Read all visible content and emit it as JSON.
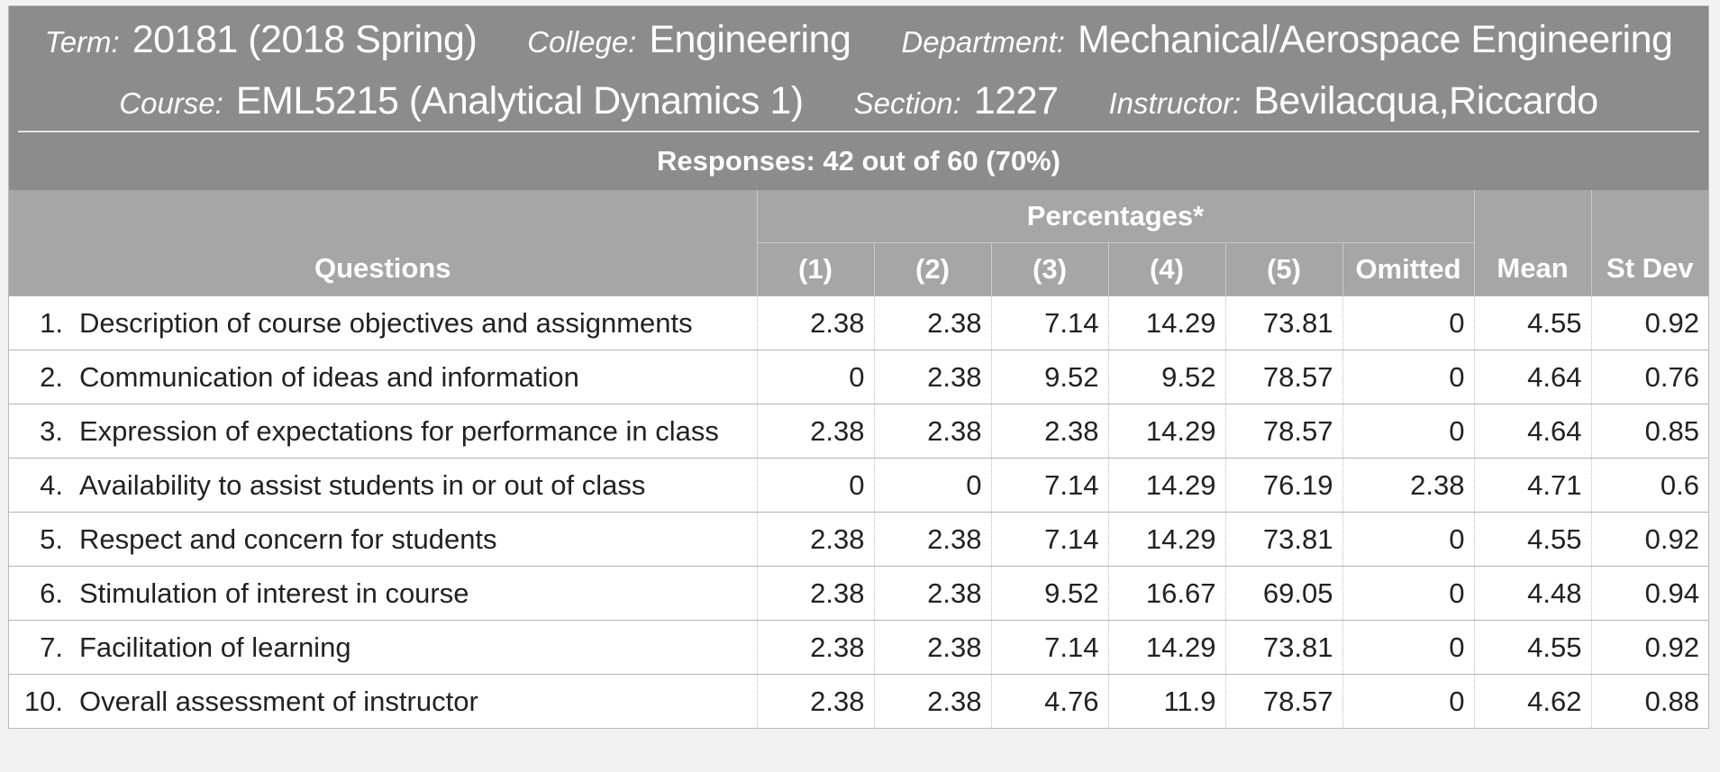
{
  "header": {
    "term_label": "Term:",
    "term_value": "20181 (2018 Spring)",
    "college_label": "College:",
    "college_value": "Engineering",
    "department_label": "Department:",
    "department_value": "Mechanical/Aerospace Engineering",
    "course_label": "Course:",
    "course_value": "EML5215 (Analytical Dynamics 1)",
    "section_label": "Section:",
    "section_value": "1227",
    "instructor_label": "Instructor:",
    "instructor_value": "Bevilacqua,Riccardo",
    "responses": "Responses: 42 out of 60 (70%)"
  },
  "table": {
    "questions_header": "Questions",
    "percentages_header": "Percentages*",
    "columns": [
      "(1)",
      "(2)",
      "(3)",
      "(4)",
      "(5)",
      "Omitted"
    ],
    "mean_header": "Mean",
    "stdev_header": "St Dev",
    "rows": [
      {
        "num": "1.",
        "text": "Description of course objectives and assignments",
        "p1": "2.38",
        "p2": "2.38",
        "p3": "7.14",
        "p4": "14.29",
        "p5": "73.81",
        "omitted": "0",
        "mean": "4.55",
        "stdev": "0.92"
      },
      {
        "num": "2.",
        "text": "Communication of ideas and information",
        "p1": "0",
        "p2": "2.38",
        "p3": "9.52",
        "p4": "9.52",
        "p5": "78.57",
        "omitted": "0",
        "mean": "4.64",
        "stdev": "0.76"
      },
      {
        "num": "3.",
        "text": "Expression of expectations for performance in class",
        "p1": "2.38",
        "p2": "2.38",
        "p3": "2.38",
        "p4": "14.29",
        "p5": "78.57",
        "omitted": "0",
        "mean": "4.64",
        "stdev": "0.85"
      },
      {
        "num": "4.",
        "text": "Availability to assist students in or out of class",
        "p1": "0",
        "p2": "0",
        "p3": "7.14",
        "p4": "14.29",
        "p5": "76.19",
        "omitted": "2.38",
        "mean": "4.71",
        "stdev": "0.6"
      },
      {
        "num": "5.",
        "text": "Respect and concern for students",
        "p1": "2.38",
        "p2": "2.38",
        "p3": "7.14",
        "p4": "14.29",
        "p5": "73.81",
        "omitted": "0",
        "mean": "4.55",
        "stdev": "0.92"
      },
      {
        "num": "6.",
        "text": "Stimulation of interest in course",
        "p1": "2.38",
        "p2": "2.38",
        "p3": "9.52",
        "p4": "16.67",
        "p5": "69.05",
        "omitted": "0",
        "mean": "4.48",
        "stdev": "0.94"
      },
      {
        "num": "7.",
        "text": "Facilitation of learning",
        "p1": "2.38",
        "p2": "2.38",
        "p3": "7.14",
        "p4": "14.29",
        "p5": "73.81",
        "omitted": "0",
        "mean": "4.55",
        "stdev": "0.92"
      },
      {
        "num": "10.",
        "text": "Overall assessment of instructor",
        "p1": "2.38",
        "p2": "2.38",
        "p3": "4.76",
        "p4": "11.9",
        "p5": "78.57",
        "omitted": "0",
        "mean": "4.62",
        "stdev": "0.88"
      }
    ]
  },
  "colors": {
    "header_bg": "#8c8c8c",
    "table_header_bg": "#a6a6a6",
    "text": "#222222"
  }
}
